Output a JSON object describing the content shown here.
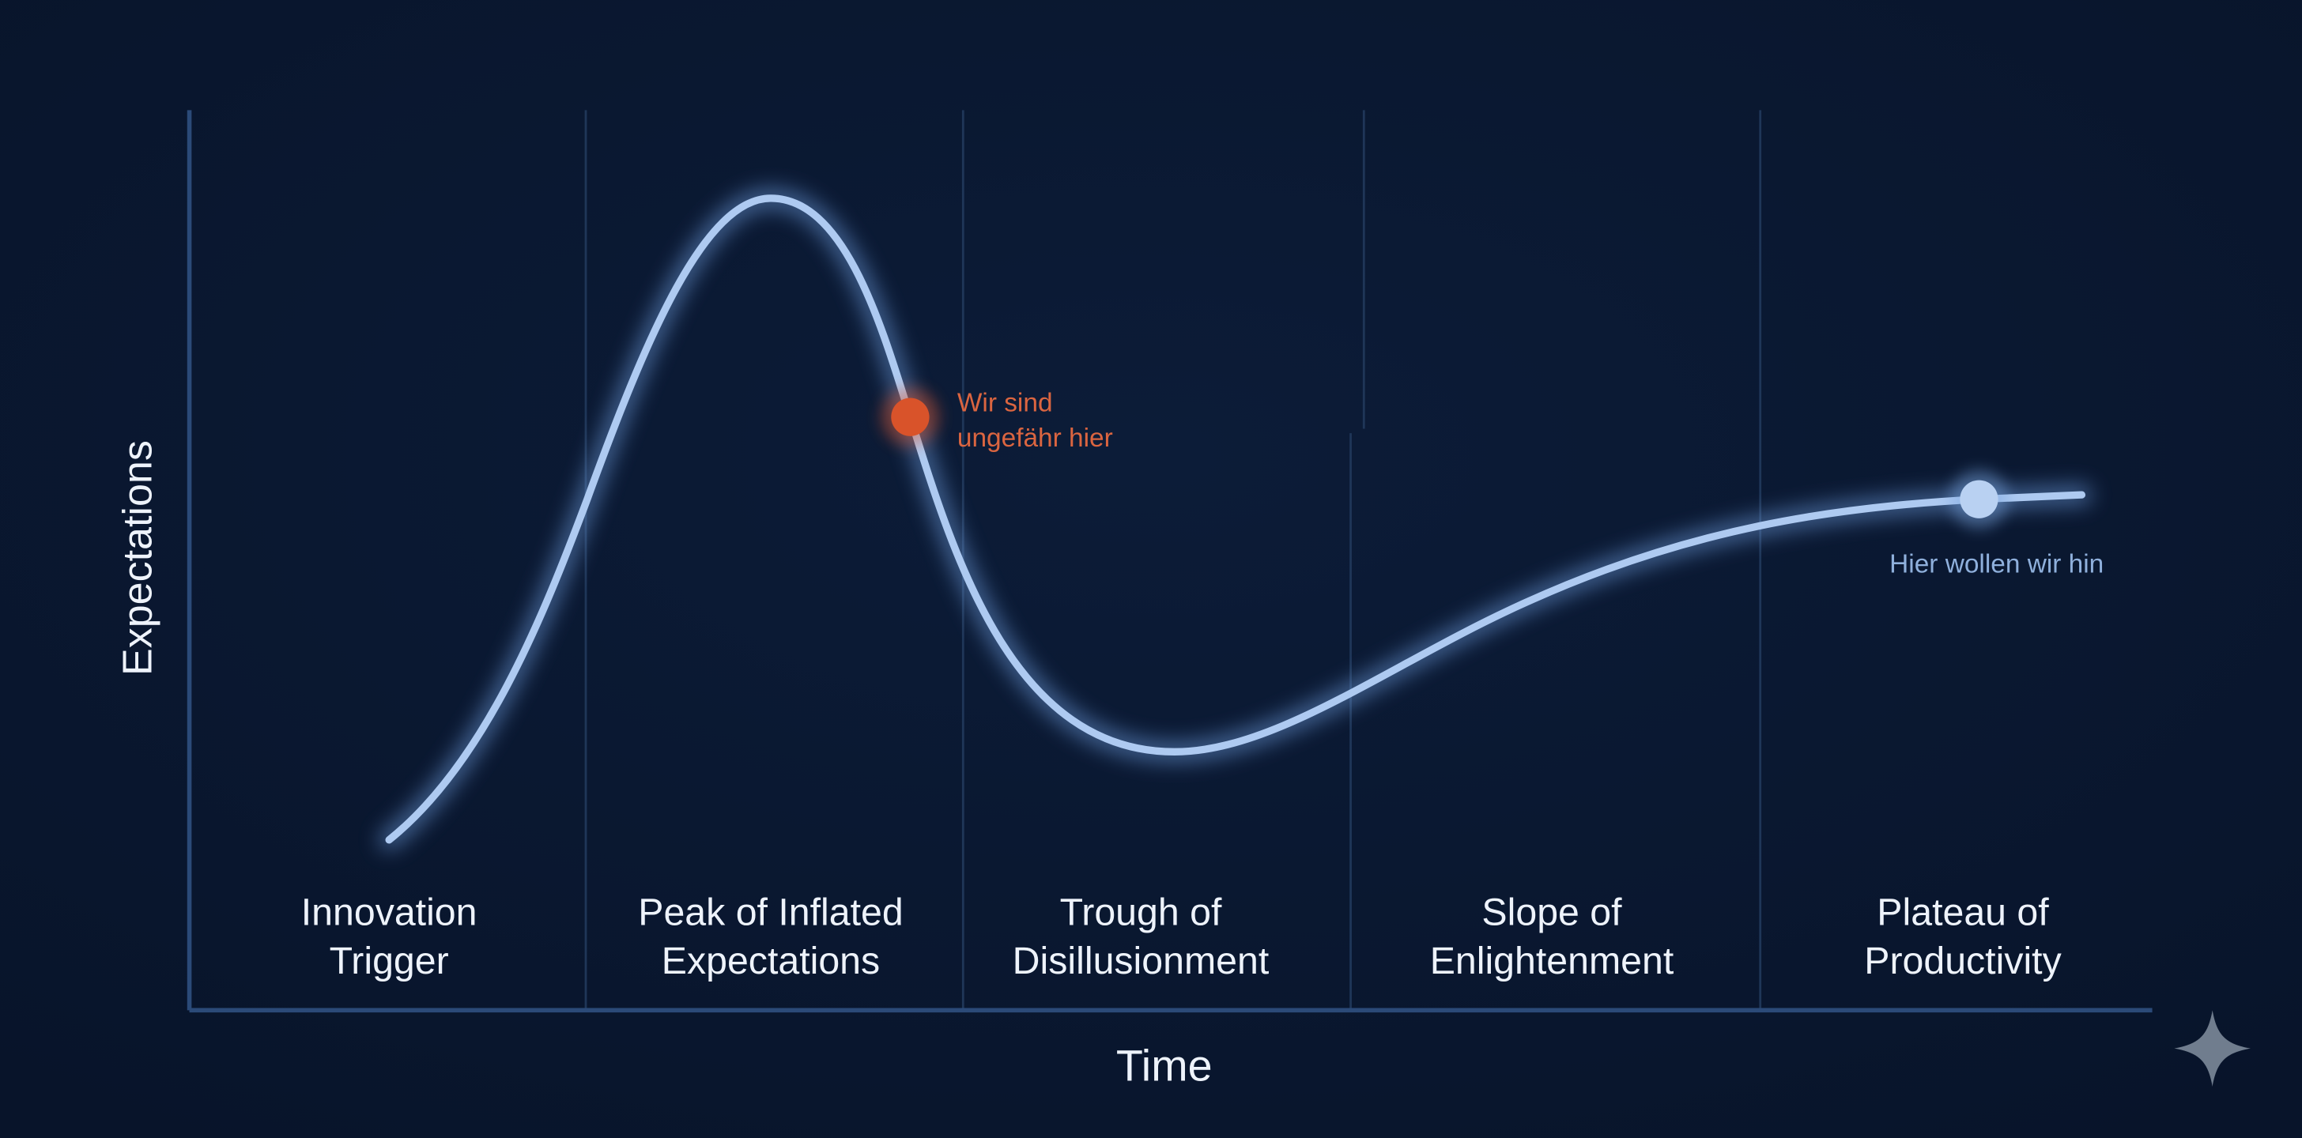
{
  "axes": {
    "y_label": "Expectations",
    "x_label": "Time"
  },
  "phases": [
    {
      "lines": [
        "Innovation",
        "Trigger"
      ]
    },
    {
      "lines": [
        "Peak of Inflated",
        "Expectations"
      ]
    },
    {
      "lines": [
        "Trough of",
        "Disillusionment"
      ]
    },
    {
      "lines": [
        "Slope of",
        "Enlightenment"
      ]
    },
    {
      "lines": [
        "Plateau of",
        "Productivity"
      ]
    }
  ],
  "annotations": {
    "current": {
      "lines": [
        "Wir sind",
        "ungefähr hier"
      ]
    },
    "goal": {
      "text": "Hier wollen wir hin"
    }
  }
}
